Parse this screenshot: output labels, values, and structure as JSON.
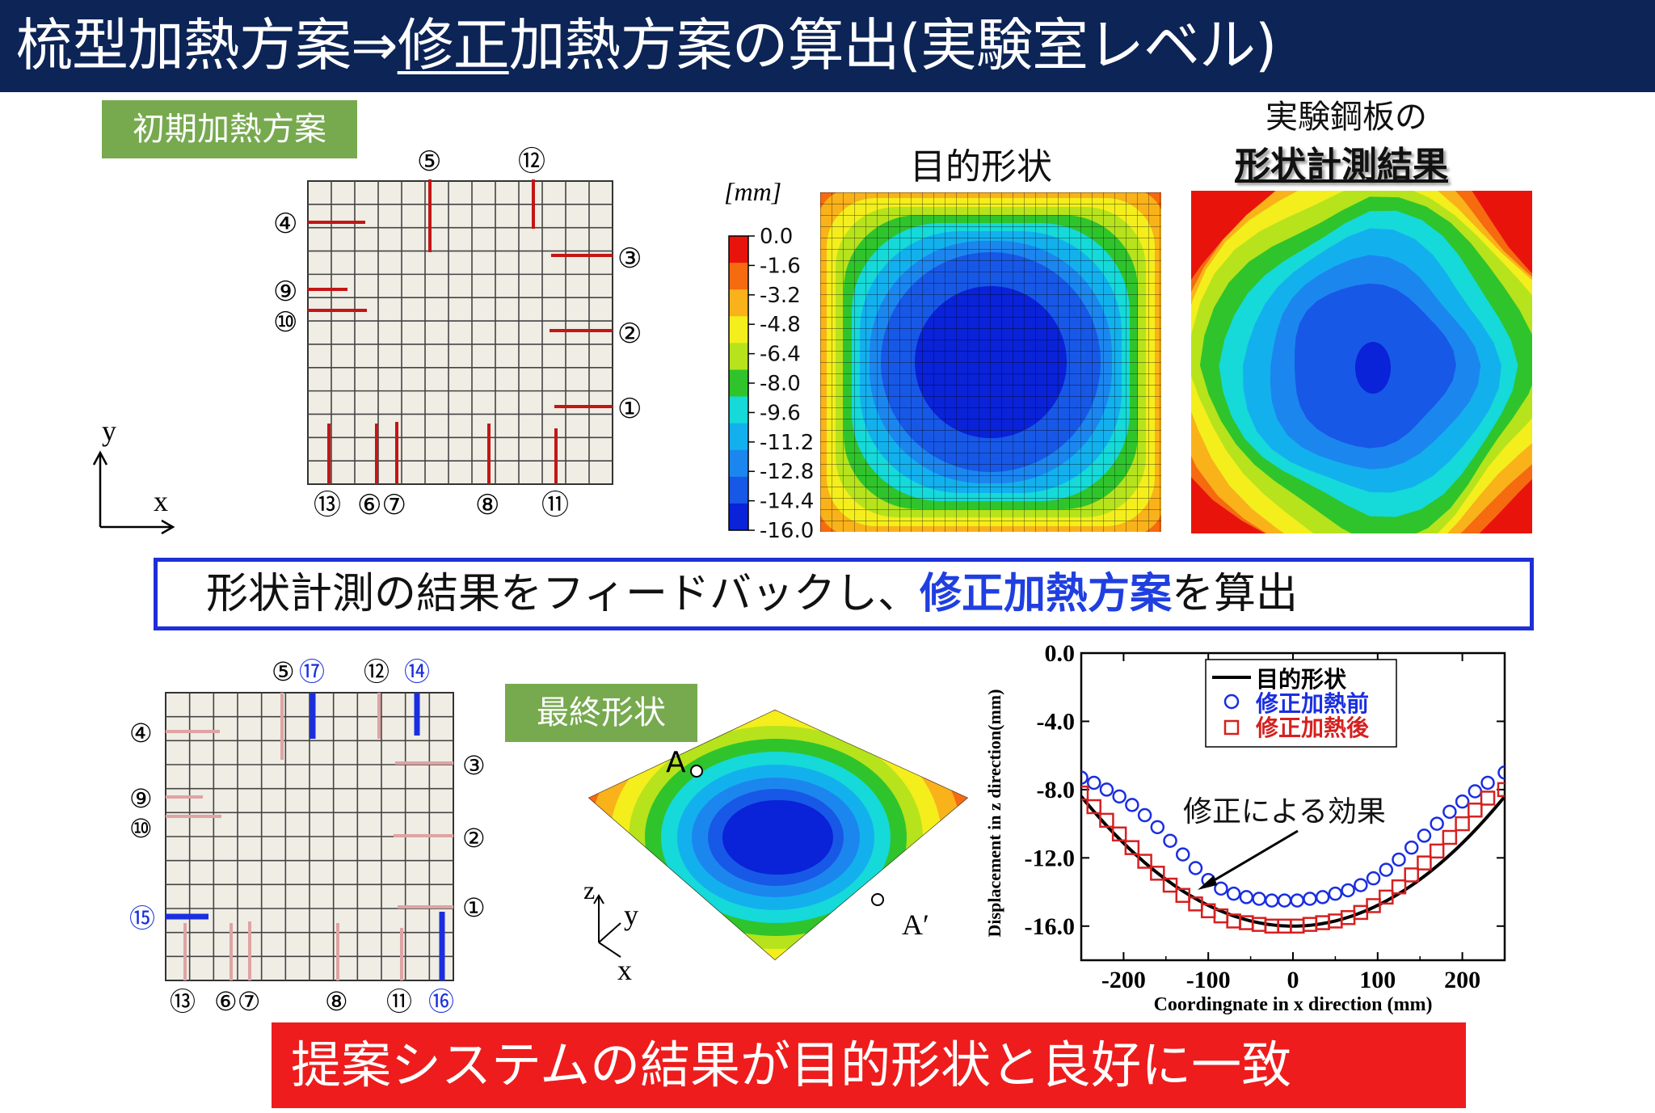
{
  "title": {
    "part1": "梳型加熱方案⇒",
    "part2": "修正",
    "part3": "加熱方案の算出(実験室レベル)"
  },
  "initial_plan": {
    "label": "初期加熱方案",
    "axis_x": "x",
    "axis_y": "y",
    "top_labels": [
      "⑤",
      "⑫"
    ],
    "left_labels": [
      "④",
      "⑨",
      "⑩"
    ],
    "right_labels": [
      "③",
      "②",
      "①"
    ],
    "bottom_labels": [
      "⑬",
      "⑥⑦",
      "⑧",
      "⑪"
    ]
  },
  "target_shape": {
    "heading": "目的形状",
    "unit": "[mm]",
    "legend_values": [
      "0.0",
      "-1.6",
      "-3.2",
      "-4.8",
      "-6.4",
      "-8.0",
      "-9.6",
      "-11.2",
      "-12.8",
      "-14.4",
      "-16.0"
    ],
    "legend_colors": [
      "#e8140c",
      "#f66a10",
      "#f9b21a",
      "#f4ee1c",
      "#b6e31c",
      "#2fc42c",
      "#16d9d9",
      "#13b0ee",
      "#1c86ef",
      "#1858e6",
      "#0a22d8"
    ]
  },
  "measured_shape": {
    "heading_line1": "実験鋼板の",
    "heading_line2": "形状計測結果"
  },
  "feedback": {
    "part1": "形状計測の結果をフィードバックし、",
    "highlight": "修正加熱方案",
    "part2": "を算出"
  },
  "corrected_plan": {
    "top_labels": [
      "⑤",
      "⑰",
      "⑫",
      "⑭"
    ],
    "left_labels": [
      "④",
      "⑨",
      "⑩",
      "⑮"
    ],
    "right_labels": [
      "③",
      "②",
      "①"
    ],
    "bottom_labels": [
      "⑬",
      "⑥⑦",
      "⑧",
      "⑪",
      "⑯"
    ]
  },
  "final_shape": {
    "label": "最終形状",
    "point_a": "A",
    "point_a_prime": "A′",
    "axis_z": "z",
    "axis_y": "y",
    "axis_x": "x"
  },
  "chart_data": {
    "type": "scatter",
    "xlabel": "Coordingnate in x direction (mm)",
    "ylabel": "Displacement in z direction(mm)",
    "xlim": [
      -250,
      250
    ],
    "ylim": [
      -18,
      0
    ],
    "xticks": [
      "-200",
      "-100",
      "0",
      "100",
      "200"
    ],
    "yticks": [
      "0.0",
      "-4.0",
      "-8.0",
      "-12.0",
      "-16.0"
    ],
    "legend_placement": "top-center",
    "annotation": "修正による効果",
    "series": [
      {
        "name": "目的形状",
        "style": "line",
        "color": "#000000",
        "x": [
          -250,
          -200,
          -150,
          -100,
          -50,
          0,
          50,
          100,
          150,
          200,
          250
        ],
        "y": [
          -8.4,
          -11.3,
          -13.6,
          -15.1,
          -15.8,
          -16.0,
          -15.8,
          -15.1,
          -13.6,
          -11.3,
          -8.4
        ]
      },
      {
        "name": "修正加熱前",
        "style": "circle",
        "color": "#1a2ee0",
        "x": [
          -250,
          -235,
          -220,
          -205,
          -190,
          -175,
          -160,
          -145,
          -130,
          -115,
          -100,
          -85,
          -70,
          -55,
          -40,
          -25,
          -10,
          5,
          20,
          35,
          50,
          65,
          80,
          95,
          110,
          125,
          140,
          155,
          170,
          185,
          200,
          215,
          230,
          250
        ],
        "y": [
          -7.3,
          -7.6,
          -8.0,
          -8.4,
          -8.9,
          -9.5,
          -10.2,
          -11.0,
          -11.8,
          -12.6,
          -13.3,
          -13.8,
          -14.1,
          -14.3,
          -14.4,
          -14.5,
          -14.5,
          -14.5,
          -14.4,
          -14.3,
          -14.1,
          -13.9,
          -13.6,
          -13.2,
          -12.7,
          -12.1,
          -11.4,
          -10.7,
          -10.0,
          -9.3,
          -8.7,
          -8.1,
          -7.6,
          -7.0
        ]
      },
      {
        "name": "修正加熱後",
        "style": "square",
        "color": "#d62020",
        "x": [
          -250,
          -235,
          -220,
          -205,
          -190,
          -175,
          -160,
          -145,
          -130,
          -115,
          -100,
          -85,
          -70,
          -55,
          -40,
          -25,
          -10,
          5,
          20,
          35,
          50,
          65,
          80,
          95,
          110,
          125,
          140,
          155,
          170,
          185,
          200,
          215,
          230,
          250
        ],
        "y": [
          -8.2,
          -9.0,
          -9.8,
          -10.6,
          -11.4,
          -12.2,
          -12.9,
          -13.6,
          -14.2,
          -14.7,
          -15.1,
          -15.4,
          -15.7,
          -15.8,
          -15.9,
          -16.0,
          -16.0,
          -16.0,
          -15.9,
          -15.8,
          -15.7,
          -15.5,
          -15.2,
          -14.8,
          -14.3,
          -13.7,
          -13.0,
          -12.3,
          -11.6,
          -10.8,
          -10.0,
          -9.2,
          -8.5,
          -8.0
        ]
      }
    ]
  }
}
